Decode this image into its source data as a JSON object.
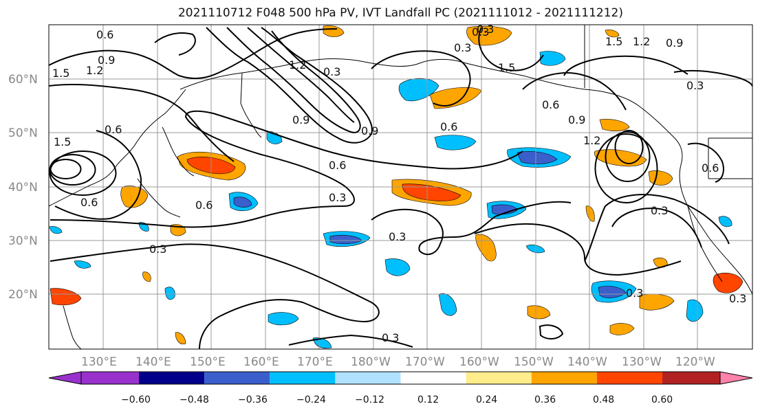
{
  "title": "2021110712 F048 500 hPa PV, IVT Landfall PC (2021111012 - 2021111212)",
  "lat_labels": [
    "60°N",
    "50°N",
    "40°N",
    "30°N",
    "20°N"
  ],
  "lon_labels": [
    "130°E",
    "140°E",
    "150°E",
    "160°E",
    "170°E",
    "180°W",
    "170°W",
    "160°W",
    "150°W",
    "140°W",
    "130°W",
    "120°W"
  ],
  "colorbar": {
    "colors": [
      "#9932CC",
      "#00008B",
      "#3A5FCD",
      "#00BFFF",
      "#B0E2FF",
      "#FFFFFF",
      "#FFEC8B",
      "#FFA500",
      "#FF4500",
      "#B22222",
      "#FF82AB"
    ],
    "tick_labels": [
      "−0.60",
      "−0.48",
      "−0.36",
      "−0.24",
      "−0.12",
      "0.12",
      "0.24",
      "0.36",
      "0.48",
      "0.60"
    ]
  },
  "contour_labels": [
    "0.6",
    "0.3",
    "1.5",
    "1.2",
    "0.9",
    "1.5",
    "0.3",
    "0.6",
    "0.9",
    "1.2",
    "0.3",
    "0.6",
    "0.3",
    "0.6",
    "0.3",
    "0.3",
    "0.3",
    "0.6",
    "0.3",
    "0.6",
    "0.9",
    "1.2",
    "1.5",
    "0.9",
    "0.6",
    "0.3",
    "0.6",
    "0.3",
    "0.9",
    "1.2",
    "1.5",
    "0.3",
    "0.3"
  ]
}
